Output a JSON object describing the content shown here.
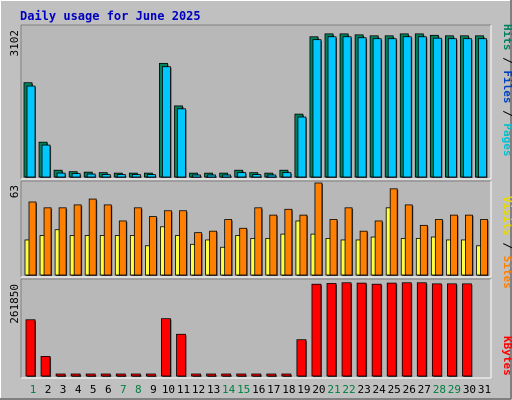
{
  "title": "Daily usage for June 2025",
  "panels": {
    "top": {
      "max_label": "3102",
      "legend": [
        {
          "text": "Pages",
          "color": "#00c0d0"
        },
        {
          "text": " / ",
          "color": "#000000"
        },
        {
          "text": "Files",
          "color": "#0040c0"
        },
        {
          "text": " / ",
          "color": "#000000"
        },
        {
          "text": "Hits",
          "color": "#008060"
        }
      ]
    },
    "middle": {
      "max_label": "63",
      "legend": [
        {
          "text": "Sites",
          "color": "#ff8000"
        },
        {
          "text": " / ",
          "color": "#000000"
        },
        {
          "text": "Visits",
          "color": "#e8d800"
        }
      ]
    },
    "bottom": {
      "max_label": "261850",
      "legend": [
        {
          "text": "KBytes",
          "color": "#ff0000"
        }
      ]
    }
  },
  "colors": {
    "background": "#c0c0c0",
    "plot_bg": "#b8b8b8",
    "hits": "#00805c",
    "files": "#00c8ff",
    "sites": "#ff8000",
    "visits": "#ffff40",
    "kbytes": "#ff0000",
    "title": "#0000c0",
    "day_weekend": "#008040",
    "day_weekday": "#000000"
  },
  "chart_data": {
    "type": "bar",
    "title": "Daily usage for June 2025",
    "categories": [
      "1",
      "2",
      "3",
      "4",
      "5",
      "6",
      "7",
      "8",
      "9",
      "10",
      "11",
      "12",
      "13",
      "14",
      "15",
      "16",
      "17",
      "18",
      "19",
      "20",
      "21",
      "22",
      "23",
      "24",
      "25",
      "26",
      "27",
      "28",
      "29",
      "30",
      "31"
    ],
    "weekend_days": [
      "1",
      "7",
      "8",
      "14",
      "15",
      "21",
      "22",
      "28",
      "29"
    ],
    "series": [
      {
        "name": "Hits",
        "panel": "top",
        "values": [
          1950,
          720,
          140,
          110,
          100,
          90,
          80,
          80,
          80,
          2350,
          1470,
          80,
          80,
          80,
          140,
          90,
          80,
          140,
          1300,
          2900,
          2960,
          2960,
          2940,
          2920,
          2920,
          2960,
          2960,
          2930,
          2920,
          2920,
          2920
        ]
      },
      {
        "name": "Files",
        "panel": "top",
        "values": [
          1880,
          660,
          80,
          70,
          60,
          50,
          50,
          50,
          50,
          2280,
          1410,
          40,
          40,
          40,
          90,
          50,
          40,
          90,
          1240,
          2840,
          2900,
          2900,
          2880,
          2860,
          2860,
          2900,
          2900,
          2870,
          2860,
          2860,
          2860
        ]
      },
      {
        "name": "Pages",
        "panel": "top",
        "values": [
          1880,
          660,
          80,
          70,
          60,
          50,
          50,
          50,
          50,
          2280,
          1410,
          40,
          40,
          40,
          90,
          50,
          40,
          90,
          1240,
          2840,
          2900,
          2900,
          2880,
          2860,
          2860,
          2900,
          2900,
          2870,
          2860,
          2860,
          2860
        ]
      },
      {
        "name": "Sites",
        "panel": "middle",
        "values": [
          50,
          46,
          46,
          48,
          52,
          48,
          37,
          46,
          40,
          44,
          44,
          29,
          30,
          38,
          32,
          46,
          41,
          45,
          41,
          63,
          38,
          46,
          30,
          37,
          59,
          48,
          34,
          38,
          41,
          41,
          38
        ]
      },
      {
        "name": "Visits",
        "panel": "middle",
        "values": [
          24,
          27,
          31,
          27,
          27,
          27,
          27,
          27,
          20,
          33,
          27,
          21,
          24,
          19,
          27,
          25,
          25,
          28,
          37,
          28,
          25,
          24,
          24,
          26,
          46,
          25,
          25,
          26,
          24,
          24,
          20
        ]
      },
      {
        "name": "KBytes",
        "panel": "bottom",
        "values": [
          155000,
          54000,
          3000,
          3000,
          3000,
          3000,
          3000,
          3000,
          3000,
          158000,
          115000,
          3000,
          3000,
          3000,
          3000,
          3000,
          3000,
          3000,
          100000,
          253000,
          255000,
          257000,
          256000,
          253000,
          256000,
          257000,
          257000,
          254000,
          254000,
          254000,
          0
        ]
      }
    ],
    "ylim": {
      "top": [
        0,
        3102
      ],
      "middle": [
        0,
        63
      ],
      "bottom": [
        0,
        261850
      ]
    }
  }
}
